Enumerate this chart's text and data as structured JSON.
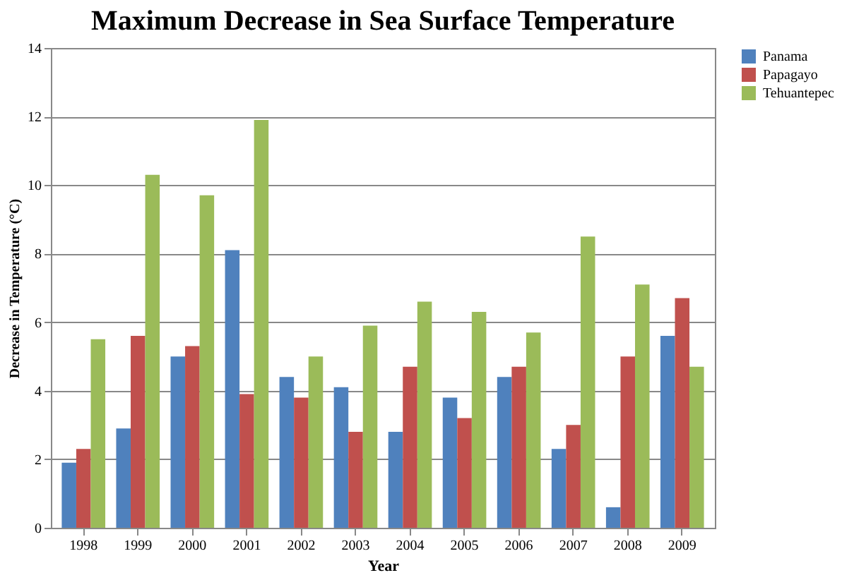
{
  "chart_data": {
    "type": "bar",
    "title": "Maximum Decrease in Sea Surface Temperature",
    "xlabel": "Year",
    "ylabel": "Decrease in Temperature (°C)",
    "categories": [
      "1998",
      "1999",
      "2000",
      "2001",
      "2002",
      "2003",
      "2004",
      "2005",
      "2006",
      "2007",
      "2008",
      "2009"
    ],
    "series": [
      {
        "name": "Panama",
        "color": "#4f81bd",
        "values": [
          1.9,
          2.9,
          5.0,
          8.1,
          4.4,
          4.1,
          2.8,
          3.8,
          4.4,
          2.3,
          0.6,
          5.6
        ]
      },
      {
        "name": "Papagayo",
        "color": "#c0504d",
        "values": [
          2.3,
          5.6,
          5.3,
          3.9,
          3.8,
          2.8,
          4.7,
          3.2,
          4.7,
          3.0,
          5.0,
          6.7
        ]
      },
      {
        "name": "Tehuantepec",
        "color": "#9bbb59",
        "values": [
          5.5,
          10.3,
          9.7,
          11.9,
          5.0,
          5.9,
          6.6,
          6.3,
          5.7,
          8.5,
          7.1,
          4.7
        ]
      }
    ],
    "ylim": [
      0,
      14
    ],
    "yticks": [
      0,
      2,
      4,
      6,
      8,
      10,
      12,
      14
    ],
    "grid": "y",
    "legend": "right"
  }
}
